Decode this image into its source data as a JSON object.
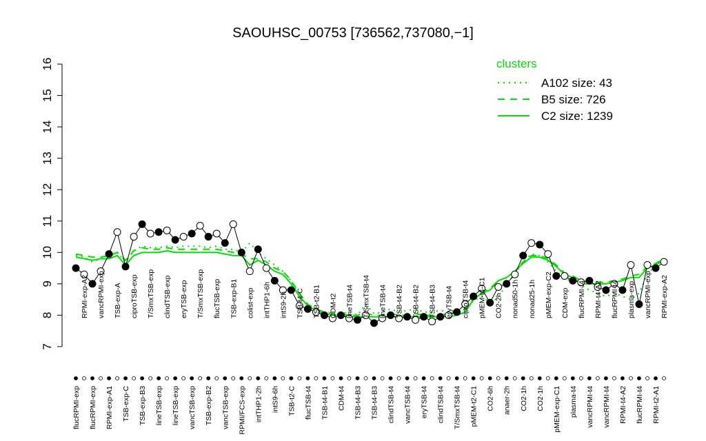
{
  "chart_data": {
    "type": "line",
    "title": "SAOUHSC_00753 [736562,737080,−1]",
    "categories": [
      "flucRPMI-exp",
      "RPMI-exp-A2",
      "flucRPMI-exp",
      "vancRPMI-exp",
      "RPMI-exp-A1",
      "TSB-exp-A",
      "TSB-exp-C",
      "ciproTSB-exp",
      "TSB-exp-B3",
      "T/SmxTSB-exp",
      "lineTSB-exp",
      "clindTSB-exp",
      "lineTSB-exp",
      "eryTSB-exp",
      "vancTSB-exp",
      "T/SmxTSB-exp",
      "TSB-exp-B2",
      "flucTSB-exp",
      "vancTSB-exp",
      "TSB-exp-B1",
      "RPMI/FCS-exp",
      "colist-exp",
      "intTHP1-2h",
      "intTHP1-6h",
      "intS9-6h",
      "intS9-2h",
      "TSB-t2-C",
      "TSB-t4-C",
      "flucTSB-t4",
      "TSB-t2-B1",
      "TSB-t4-B1",
      "CDM-t2",
      "CDM-t4",
      "lineTSB-t4",
      "TSB-t4-B3",
      "T/SmxTSB-t4",
      "TSB-t4-B3",
      "lineTSB-t4",
      "clindTSB-t4",
      "TSB-t4-B2",
      "vancTSB-t4",
      "TSB-t4-B2",
      "eryTSB-t4",
      "TSB-t4-B3",
      "clindTSB-t4",
      "eryTSB-t4",
      "T/SmxTSB-t4",
      "ciproTSB-t4",
      "pMEM-t2-C1",
      "pMEM-t4-C1",
      "CO2-6h",
      "CO2-2h",
      "anaer-2h",
      "nonad50-1h",
      "CO2-1h",
      "nonad25-1h",
      "CO2-1h",
      "pMEM-exp-C2",
      "pMEM-exp-C1",
      "CDM-exp",
      "plasma-t4",
      "flucRPMI-t4",
      "vancRPMI-t4",
      "RPMI-t4-A2",
      "vancRPMI-t4",
      "flucRPMI-t4",
      "RPMI-t4-A2",
      "plasma-exp",
      "flucRPMI-t4",
      "vancRPMI-exp",
      "RPMI-t2-A1",
      "RPMI-exp-A2"
    ],
    "values": [
      9.5,
      9.3,
      9.0,
      9.4,
      9.95,
      10.65,
      9.55,
      10.5,
      10.9,
      10.6,
      10.65,
      10.7,
      10.4,
      10.5,
      10.6,
      10.85,
      10.5,
      10.6,
      10.3,
      10.9,
      10.0,
      9.4,
      10.1,
      9.5,
      9.1,
      8.8,
      8.8,
      8.3,
      8.2,
      8.1,
      8.0,
      7.9,
      8.0,
      7.9,
      7.85,
      8.0,
      7.75,
      7.9,
      8.0,
      7.9,
      7.95,
      7.85,
      7.95,
      7.8,
      7.95,
      8.0,
      8.1,
      8.35,
      8.6,
      8.85,
      8.4,
      8.9,
      9.0,
      9.3,
      9.9,
      10.3,
      10.25,
      9.95,
      9.25,
      9.25,
      9.1,
      9.05,
      9.1,
      8.9,
      8.8,
      9.0,
      8.8,
      9.6,
      8.35,
      9.6,
      9.5,
      9.7
    ],
    "marker_fills": [
      "black",
      "white"
    ],
    "legend_title": "clusters",
    "series": [
      {
        "name": "A102 size: 43",
        "color": "#00e000",
        "dash": "dotted",
        "values": [
          9.9,
          9.85,
          9.7,
          9.8,
          9.85,
          10.0,
          9.7,
          10.05,
          10.2,
          10.15,
          10.15,
          10.2,
          10.15,
          10.2,
          10.2,
          10.2,
          10.15,
          10.2,
          10.1,
          10.1,
          10.0,
          10.3,
          10.0,
          9.8,
          9.6,
          9.4,
          9.1,
          8.6,
          8.3,
          8.15,
          8.05,
          8.0,
          8.05,
          8.1,
          8.0,
          8.35,
          8.05,
          8.1,
          8.2,
          8.1,
          8.15,
          8.2,
          8.1,
          8.1,
          8.15,
          8.1,
          8.15,
          8.2,
          8.45,
          8.6,
          8.4,
          8.55,
          9.0,
          9.3,
          9.7,
          9.95,
          9.9,
          9.7,
          9.4,
          9.2,
          9.05,
          8.95,
          8.8,
          8.7,
          8.6,
          8.7,
          8.6,
          8.5,
          8.7,
          9.3,
          9.6,
          9.8
        ]
      },
      {
        "name": "B5 size: 726",
        "color": "#00e000",
        "dash": "dashed",
        "values": [
          9.95,
          9.9,
          9.85,
          9.85,
          9.9,
          10.0,
          9.75,
          10.05,
          10.15,
          10.1,
          10.1,
          10.15,
          10.1,
          10.1,
          10.1,
          10.1,
          10.1,
          10.1,
          10.05,
          10.0,
          9.95,
          9.8,
          9.8,
          9.7,
          9.5,
          9.4,
          9.1,
          8.7,
          8.35,
          8.2,
          8.1,
          8.05,
          8.05,
          8.0,
          8.0,
          8.05,
          8.0,
          8.0,
          8.05,
          8.0,
          8.0,
          8.05,
          8.0,
          8.0,
          8.0,
          8.05,
          8.1,
          8.2,
          8.55,
          8.75,
          8.85,
          9.1,
          9.2,
          9.4,
          9.7,
          9.9,
          9.9,
          9.8,
          9.6,
          9.35,
          9.25,
          9.1,
          9.05,
          9.05,
          9.05,
          9.1,
          9.15,
          9.25,
          9.3,
          9.55,
          9.65,
          9.8
        ]
      },
      {
        "name": "C2 size: 1239",
        "color": "#00e000",
        "dash": "solid",
        "values": [
          9.85,
          9.8,
          9.75,
          9.8,
          9.8,
          9.9,
          9.6,
          9.9,
          10.0,
          10.0,
          10.0,
          10.05,
          10.0,
          10.0,
          10.0,
          10.0,
          10.0,
          10.0,
          9.95,
          9.9,
          9.9,
          9.6,
          9.75,
          9.6,
          9.4,
          9.3,
          9.0,
          8.6,
          8.3,
          8.15,
          8.05,
          8.0,
          8.0,
          7.95,
          7.95,
          7.95,
          7.95,
          7.95,
          7.95,
          7.95,
          7.95,
          7.95,
          7.95,
          7.95,
          7.95,
          7.95,
          8.0,
          8.1,
          8.5,
          8.7,
          8.8,
          9.1,
          9.2,
          9.4,
          9.65,
          9.85,
          9.85,
          9.75,
          9.55,
          9.3,
          9.2,
          9.0,
          9.0,
          9.0,
          9.0,
          9.05,
          9.1,
          9.2,
          9.2,
          9.5,
          9.6,
          9.75
        ]
      }
    ],
    "ylim": [
      7,
      16
    ],
    "yticks": [
      7,
      8,
      9,
      10,
      11,
      12,
      13,
      14,
      15,
      16
    ]
  }
}
